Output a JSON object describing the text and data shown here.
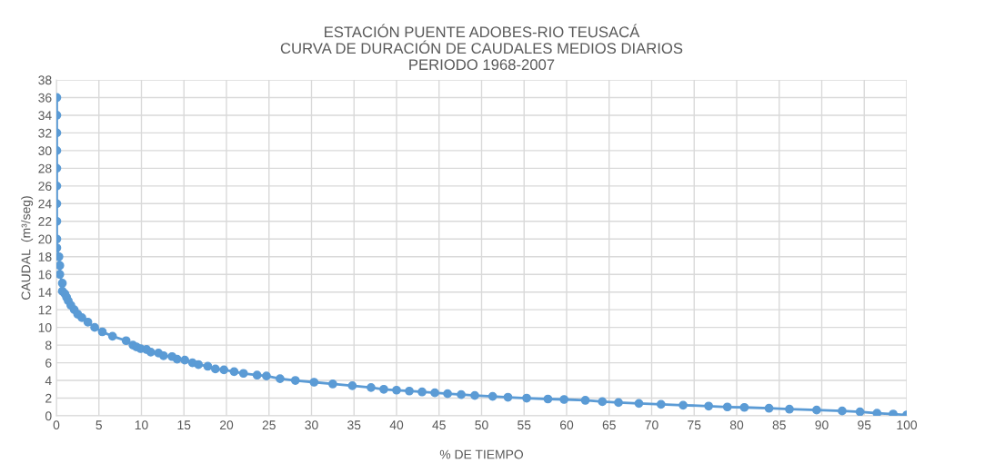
{
  "chart_data": {
    "type": "line",
    "title": "ESTACIÓN PUENTE ADOBES-RIO TEUSACÁ\nCURVA DE DURACIÓN DE CAUDALES MEDIOS DIARIOS\nPERIODO 1968-2007",
    "xlabel": "% DE TIEMPO",
    "ylabel": "CAUDAL  (m³/seg)",
    "x": [
      0.05,
      0.05,
      0.05,
      0.05,
      0.05,
      0.05,
      0.05,
      0.05,
      0.05,
      0.05,
      0.3,
      0.4,
      0.4,
      0.7,
      0.7,
      1.0,
      1.2,
      1.4,
      1.7,
      2.1,
      2.5,
      3,
      3.7,
      4.5,
      5.4,
      6.6,
      8.2,
      9,
      9.4,
      9.9,
      10.6,
      11.1,
      12,
      12.6,
      13.6,
      14.2,
      15.1,
      16,
      16.7,
      17.8,
      18.7,
      19.7,
      20.9,
      22,
      23.6,
      24.7,
      26.3,
      28.1,
      30.3,
      32.5,
      34.8,
      37,
      38.5,
      40,
      41.5,
      43,
      44.5,
      46,
      47.6,
      49.2,
      51.3,
      53.1,
      55.3,
      57.8,
      59.7,
      62.2,
      64.2,
      66.1,
      68.5,
      71.1,
      73.7,
      76.7,
      78.9,
      80.9,
      83.8,
      86.2,
      89.4,
      92.4,
      94.5,
      96.5,
      98.4,
      100
    ],
    "series": [
      {
        "color": "#5b9bd5",
        "values": [
          36,
          34,
          32,
          30,
          28,
          26,
          24,
          22,
          20,
          19,
          18,
          17,
          16,
          15,
          14.1,
          13.8,
          13.4,
          13,
          12.5,
          12,
          11.5,
          11.1,
          10.6,
          10,
          9.5,
          9,
          8.5,
          8,
          7.8,
          7.6,
          7.5,
          7.2,
          7.1,
          6.8,
          6.7,
          6.4,
          6.3,
          6,
          5.8,
          5.6,
          5.3,
          5.2,
          5,
          4.8,
          4.6,
          4.5,
          4.2,
          4.0,
          3.8,
          3.6,
          3.4,
          3.2,
          3.0,
          2.9,
          2.8,
          2.7,
          2.6,
          2.5,
          2.4,
          2.3,
          2.2,
          2.1,
          2.0,
          1.9,
          1.85,
          1.75,
          1.6,
          1.5,
          1.4,
          1.3,
          1.2,
          1.1,
          1.0,
          0.95,
          0.85,
          0.75,
          0.65,
          0.55,
          0.45,
          0.3,
          0.2,
          0.1
        ]
      }
    ],
    "xlim": [
      0,
      100
    ],
    "xticks": [
      0,
      5,
      10,
      15,
      20,
      25,
      30,
      35,
      40,
      45,
      50,
      55,
      60,
      65,
      70,
      75,
      80,
      85,
      90,
      95,
      100
    ],
    "ylim": [
      0,
      38
    ],
    "yticks": [
      0,
      2,
      4,
      6,
      8,
      10,
      12,
      14,
      16,
      18,
      20,
      22,
      24,
      26,
      28,
      30,
      32,
      34,
      36,
      38
    ],
    "grid": true,
    "marker": "circle",
    "line_style": "solid",
    "legend": false
  }
}
